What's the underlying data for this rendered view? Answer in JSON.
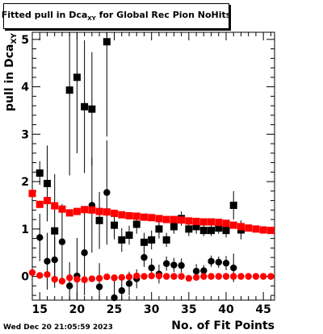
{
  "title": {
    "main": "Fitted pull in Dca",
    "sub": "XY",
    "rest": " for Global Rec Pion NoHits"
  },
  "footer": {
    "timestamp": "Wed Dec 20 21:05:59 2023"
  },
  "chart_data": {
    "type": "scatter",
    "xlabel": "No. of Fit Points",
    "ylabel_main": "pull in Dca",
    "ylabel_sub": "XY",
    "xlim": [
      14,
      46.5
    ],
    "ylim": [
      -0.5,
      5.15
    ],
    "x_ticks": [
      15,
      20,
      25,
      30,
      35,
      40,
      45
    ],
    "y_ticks": [
      0,
      1,
      2,
      3,
      4,
      5
    ],
    "grid": false,
    "legend": "none",
    "series": [
      {
        "marker": "square",
        "color": "#ff0000",
        "points": [
          {
            "x": 14,
            "y": 1.75,
            "err": 0.05
          },
          {
            "x": 15,
            "y": 1.52,
            "err": 0.05
          },
          {
            "x": 16,
            "y": 1.6,
            "err": 0.05
          },
          {
            "x": 17,
            "y": 1.49,
            "err": 0.04
          },
          {
            "x": 18,
            "y": 1.42,
            "err": 0.04
          },
          {
            "x": 19,
            "y": 1.34,
            "err": 0.04
          },
          {
            "x": 20,
            "y": 1.37,
            "err": 0.04
          },
          {
            "x": 21,
            "y": 1.41,
            "err": 0.04
          },
          {
            "x": 22,
            "y": 1.4,
            "err": 0.04
          },
          {
            "x": 23,
            "y": 1.37,
            "err": 0.03
          },
          {
            "x": 24,
            "y": 1.36,
            "err": 0.03
          },
          {
            "x": 25,
            "y": 1.33,
            "err": 0.03
          },
          {
            "x": 26,
            "y": 1.3,
            "err": 0.03
          },
          {
            "x": 27,
            "y": 1.28,
            "err": 0.03
          },
          {
            "x": 28,
            "y": 1.27,
            "err": 0.03
          },
          {
            "x": 29,
            "y": 1.25,
            "err": 0.03
          },
          {
            "x": 30,
            "y": 1.24,
            "err": 0.03
          },
          {
            "x": 31,
            "y": 1.22,
            "err": 0.03
          },
          {
            "x": 32,
            "y": 1.2,
            "err": 0.03
          },
          {
            "x": 33,
            "y": 1.2,
            "err": 0.03
          },
          {
            "x": 34,
            "y": 1.19,
            "err": 0.03
          },
          {
            "x": 35,
            "y": 1.17,
            "err": 0.03
          },
          {
            "x": 36,
            "y": 1.16,
            "err": 0.03
          },
          {
            "x": 37,
            "y": 1.15,
            "err": 0.03
          },
          {
            "x": 38,
            "y": 1.15,
            "err": 0.03
          },
          {
            "x": 39,
            "y": 1.14,
            "err": 0.03
          },
          {
            "x": 40,
            "y": 1.12,
            "err": 0.03
          },
          {
            "x": 41,
            "y": 1.08,
            "err": 0.03
          },
          {
            "x": 42,
            "y": 1.05,
            "err": 0.03
          },
          {
            "x": 43,
            "y": 1.02,
            "err": 0.03
          },
          {
            "x": 44,
            "y": 1.0,
            "err": 0.03
          },
          {
            "x": 45,
            "y": 0.98,
            "err": 0.03
          },
          {
            "x": 46,
            "y": 0.97,
            "err": 0.03
          }
        ]
      },
      {
        "marker": "circle",
        "color": "#ff0000",
        "points": [
          {
            "x": 14,
            "y": 0.08,
            "err": 0.03
          },
          {
            "x": 15,
            "y": 0.02,
            "err": 0.03
          },
          {
            "x": 16,
            "y": 0.04,
            "err": 0.03
          },
          {
            "x": 17,
            "y": -0.06,
            "err": 0.03
          },
          {
            "x": 18,
            "y": -0.1,
            "err": 0.03
          },
          {
            "x": 19,
            "y": -0.03,
            "err": 0.03
          },
          {
            "x": 20,
            "y": -0.06,
            "err": 0.03
          },
          {
            "x": 21,
            "y": -0.07,
            "err": 0.03
          },
          {
            "x": 22,
            "y": -0.05,
            "err": 0.03
          },
          {
            "x": 23,
            "y": -0.04,
            "err": 0.03
          },
          {
            "x": 24,
            "y": -0.01,
            "err": 0.03
          },
          {
            "x": 25,
            "y": -0.03,
            "err": 0.03
          },
          {
            "x": 26,
            "y": -0.02,
            "err": 0.03
          },
          {
            "x": 27,
            "y": -0.01,
            "err": 0.03
          },
          {
            "x": 28,
            "y": 0.01,
            "err": 0.03
          },
          {
            "x": 29,
            "y": 0.0,
            "err": 0.03
          },
          {
            "x": 30,
            "y": 0.01,
            "err": 0.03
          },
          {
            "x": 31,
            "y": 0.01,
            "err": 0.03
          },
          {
            "x": 32,
            "y": 0.0,
            "err": 0.03
          },
          {
            "x": 33,
            "y": 0.0,
            "err": 0.03
          },
          {
            "x": 34,
            "y": 0.0,
            "err": 0.03
          },
          {
            "x": 35,
            "y": -0.04,
            "err": 0.03
          },
          {
            "x": 36,
            "y": -0.02,
            "err": 0.03
          },
          {
            "x": 37,
            "y": 0.0,
            "err": 0.03
          },
          {
            "x": 38,
            "y": 0.0,
            "err": 0.03
          },
          {
            "x": 39,
            "y": 0.0,
            "err": 0.03
          },
          {
            "x": 40,
            "y": 0.0,
            "err": 0.03
          },
          {
            "x": 41,
            "y": 0.0,
            "err": 0.03
          },
          {
            "x": 42,
            "y": 0.0,
            "err": 0.03
          },
          {
            "x": 43,
            "y": 0.0,
            "err": 0.03
          },
          {
            "x": 44,
            "y": 0.0,
            "err": 0.03
          },
          {
            "x": 45,
            "y": 0.0,
            "err": 0.03
          },
          {
            "x": 46,
            "y": 0.0,
            "err": 0.03
          }
        ]
      },
      {
        "marker": "square",
        "color": "#000000",
        "points": [
          {
            "x": 15,
            "y": 2.18,
            "err": 0.25
          },
          {
            "x": 16,
            "y": 1.96,
            "err": 0.8
          },
          {
            "x": 17,
            "y": 0.96,
            "err": 1.2
          },
          {
            "x": 19,
            "y": 3.93,
            "err": 1.8
          },
          {
            "x": 20,
            "y": 4.2,
            "err": 1.6
          },
          {
            "x": 21,
            "y": 3.58,
            "err": 1.4
          },
          {
            "x": 22,
            "y": 3.53,
            "err": 1.2
          },
          {
            "x": 23,
            "y": 1.18,
            "err": 0.6
          },
          {
            "x": 24,
            "y": 4.95,
            "err": 2.0
          },
          {
            "x": 25,
            "y": 1.08,
            "err": 0.3
          },
          {
            "x": 26,
            "y": 0.77,
            "err": 0.25
          },
          {
            "x": 27,
            "y": 0.87,
            "err": 0.2
          },
          {
            "x": 28,
            "y": 1.1,
            "err": 0.2
          },
          {
            "x": 29,
            "y": 0.72,
            "err": 0.2
          },
          {
            "x": 30,
            "y": 0.77,
            "err": 0.2
          },
          {
            "x": 31,
            "y": 1.0,
            "err": 0.2
          },
          {
            "x": 32,
            "y": 0.77,
            "err": 0.15
          },
          {
            "x": 33,
            "y": 1.05,
            "err": 0.15
          },
          {
            "x": 34,
            "y": 1.22,
            "err": 0.15
          },
          {
            "x": 35,
            "y": 1.0,
            "err": 0.15
          },
          {
            "x": 36,
            "y": 1.05,
            "err": 0.15
          },
          {
            "x": 37,
            "y": 0.97,
            "err": 0.12
          },
          {
            "x": 38,
            "y": 0.97,
            "err": 0.12
          },
          {
            "x": 39,
            "y": 1.02,
            "err": 0.12
          },
          {
            "x": 40,
            "y": 0.97,
            "err": 0.15
          },
          {
            "x": 41,
            "y": 1.5,
            "err": 0.3
          },
          {
            "x": 42,
            "y": 0.98,
            "err": 0.2
          }
        ]
      },
      {
        "marker": "circle",
        "color": "#000000",
        "points": [
          {
            "x": 15,
            "y": 0.82,
            "err": 0.5
          },
          {
            "x": 16,
            "y": 0.32,
            "err": 0.6
          },
          {
            "x": 17,
            "y": 0.35,
            "err": 0.5
          },
          {
            "x": 18,
            "y": 0.73,
            "err": 0.8
          },
          {
            "x": 19,
            "y": -0.2,
            "err": 0.5
          },
          {
            "x": 20,
            "y": 0.01,
            "err": 0.8
          },
          {
            "x": 21,
            "y": 0.5,
            "err": 0.9
          },
          {
            "x": 22,
            "y": 1.5,
            "err": 1.0
          },
          {
            "x": 23,
            "y": -0.22,
            "err": 0.5
          },
          {
            "x": 24,
            "y": 1.77,
            "err": 1.1
          },
          {
            "x": 25,
            "y": -0.45,
            "err": 0.4
          },
          {
            "x": 26,
            "y": -0.3,
            "err": 0.3
          },
          {
            "x": 27,
            "y": -0.15,
            "err": 0.25
          },
          {
            "x": 28,
            "y": -0.05,
            "err": 0.2
          },
          {
            "x": 29,
            "y": 0.4,
            "err": 0.2
          },
          {
            "x": 30,
            "y": 0.18,
            "err": 0.2
          },
          {
            "x": 31,
            "y": 0.05,
            "err": 0.2
          },
          {
            "x": 32,
            "y": 0.27,
            "err": 0.15
          },
          {
            "x": 33,
            "y": 0.24,
            "err": 0.15
          },
          {
            "x": 34,
            "y": 0.23,
            "err": 0.15
          },
          {
            "x": 36,
            "y": 0.11,
            "err": 0.15
          },
          {
            "x": 37,
            "y": 0.12,
            "err": 0.12
          },
          {
            "x": 38,
            "y": 0.32,
            "err": 0.12
          },
          {
            "x": 39,
            "y": 0.3,
            "err": 0.12
          },
          {
            "x": 40,
            "y": 0.28,
            "err": 0.15
          },
          {
            "x": 41,
            "y": 0.18,
            "err": 0.3
          }
        ]
      }
    ]
  }
}
